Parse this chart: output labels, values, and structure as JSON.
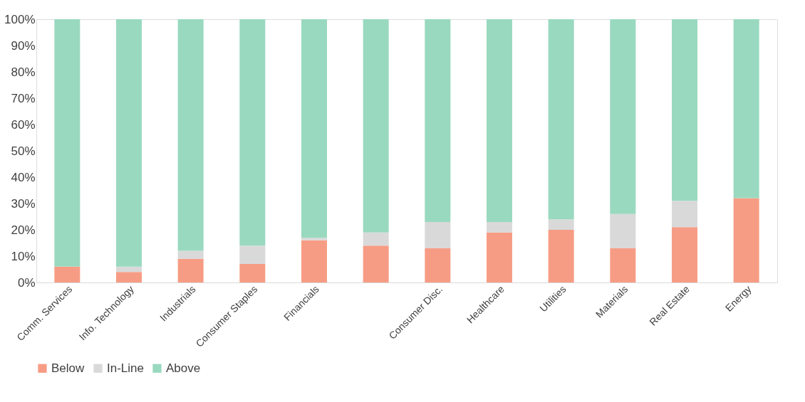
{
  "chart_data": {
    "type": "bar",
    "stacked": true,
    "categories": [
      "Comm. Services",
      "Info. Technology",
      "Industrials",
      "Consumer Staples",
      "Financials",
      null,
      "Consumer Disc.",
      "Healthcare",
      "Utilities",
      "Materials",
      "Real Estate",
      "Energy"
    ],
    "series": [
      {
        "name": "Below",
        "color": "#f79c84",
        "values": [
          6,
          4,
          9,
          7,
          16,
          14,
          13,
          19,
          20,
          13,
          21,
          32
        ]
      },
      {
        "name": "In-Line",
        "color": "#d9d9d9",
        "values": [
          0,
          2,
          3,
          7,
          1,
          5,
          10,
          4,
          4,
          13,
          10,
          0
        ]
      },
      {
        "name": "Above",
        "color": "#99d9bf",
        "values": [
          94,
          94,
          88,
          86,
          83,
          81,
          77,
          77,
          76,
          74,
          69,
          68
        ]
      }
    ],
    "ylim": [
      0,
      100
    ],
    "yticks": [
      {
        "value": 0,
        "label": "0%"
      },
      {
        "value": 10,
        "label": "10%"
      },
      {
        "value": 20,
        "label": "20%"
      },
      {
        "value": 30,
        "label": "30%"
      },
      {
        "value": 40,
        "label": "40%"
      },
      {
        "value": 50,
        "label": "50%"
      },
      {
        "value": 60,
        "label": "60%"
      },
      {
        "value": 70,
        "label": "70%"
      },
      {
        "value": 80,
        "label": "80%"
      },
      {
        "value": 90,
        "label": "90%"
      },
      {
        "value": 100,
        "label": "100%"
      }
    ],
    "grid": false,
    "legend": "bottom"
  }
}
